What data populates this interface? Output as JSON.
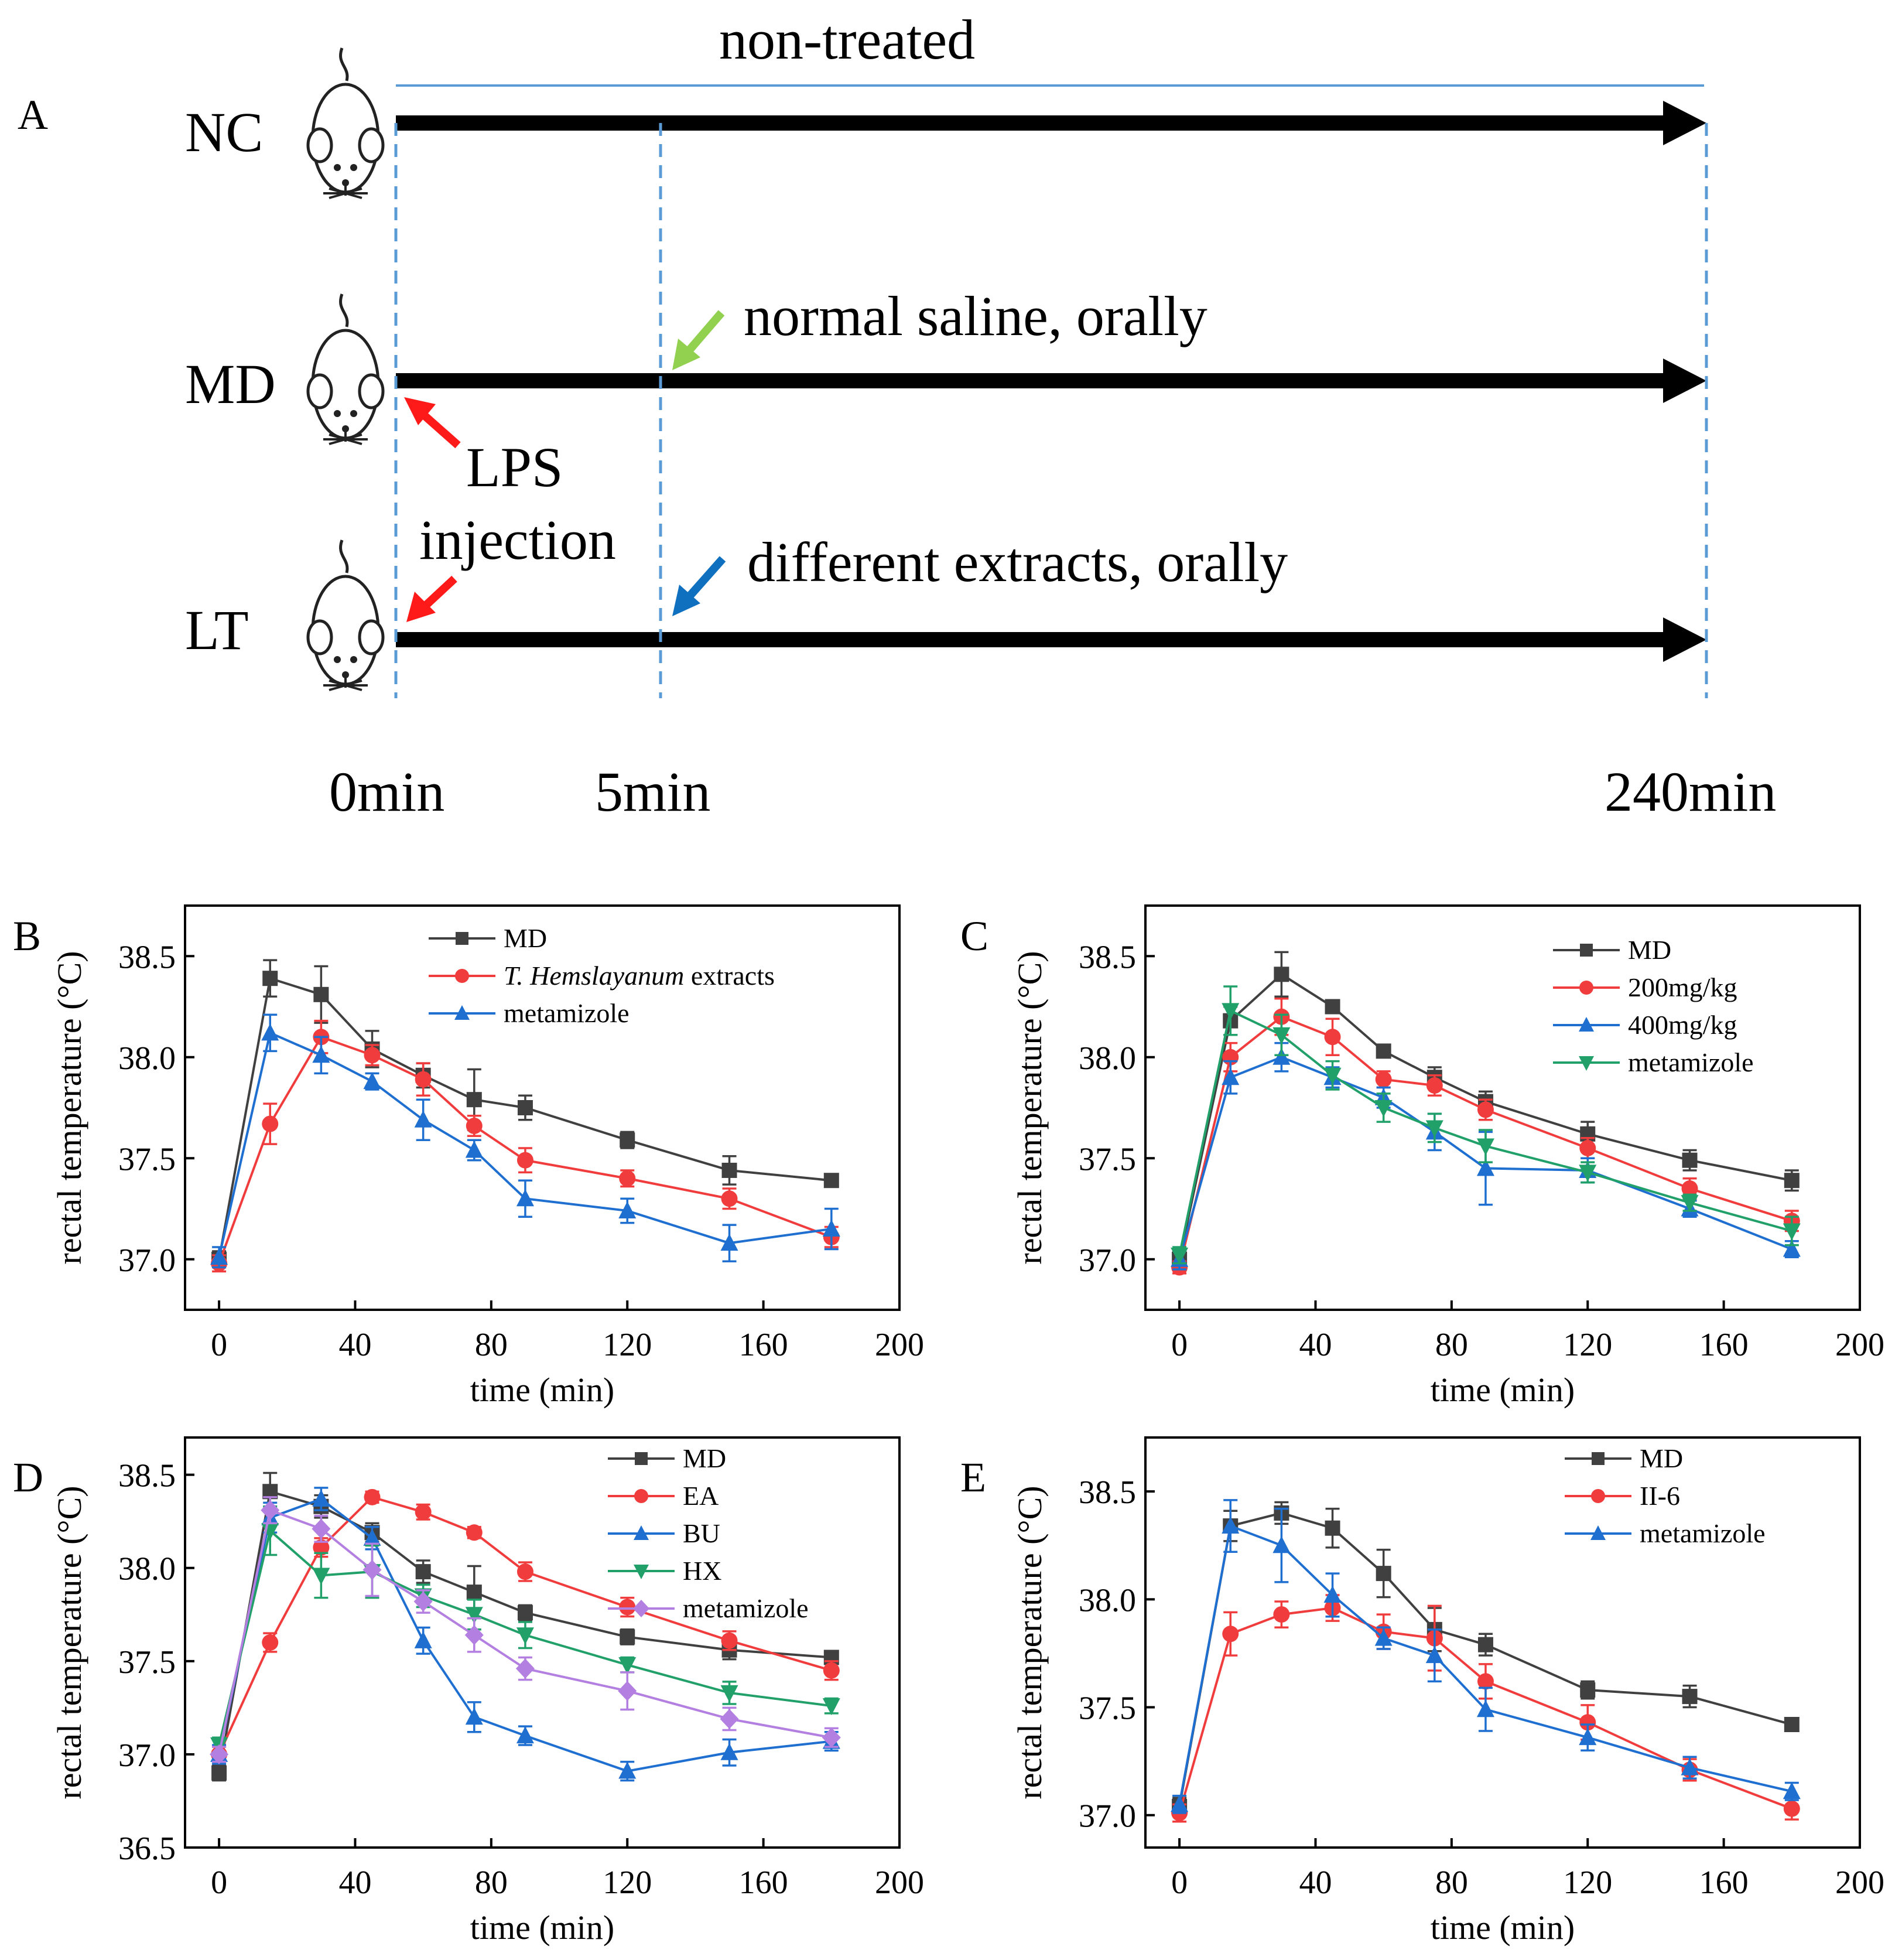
{
  "schematic": {
    "panel_label": "A",
    "groups": [
      "NC",
      "MD",
      "LT"
    ],
    "top_label": "non-treated",
    "md_label": "normal saline, orally",
    "lt_label": "different extracts, orally",
    "lps_label_1": "LPS",
    "lps_label_2": "injection",
    "times": [
      "0min",
      "5min",
      "240min"
    ],
    "colors": {
      "lps_arrow": "#ff1a1a",
      "saline_arrow": "#92d050",
      "extract_arrow": "#1070c0",
      "guide_line": "#5b9bd5"
    }
  },
  "chart_data": [
    {
      "panel": "B",
      "type": "line",
      "xlabel": "time (min)",
      "ylabel": "rectal temperature (°C)",
      "xlim": [
        -10,
        200
      ],
      "ylim": [
        36.75,
        38.75
      ],
      "xticks": [
        0,
        40,
        80,
        120,
        160,
        200
      ],
      "xtick_labels": [
        "0",
        "40",
        "80",
        "120",
        "160",
        "200"
      ],
      "yticks": [
        37.0,
        37.5,
        38.0,
        38.5
      ],
      "ytick_labels": [
        "37.0",
        "37.5",
        "38.0",
        "38.5"
      ],
      "legend_position": "top-right",
      "x": [
        0,
        15,
        30,
        45,
        60,
        75,
        90,
        120,
        150,
        180
      ],
      "series": [
        {
          "name": "MD",
          "color": "#404040",
          "marker": "square",
          "values": [
            37.0,
            38.39,
            38.31,
            38.04,
            37.91,
            37.79,
            37.75,
            37.59,
            37.44,
            37.39
          ],
          "errors": [
            0.04,
            0.09,
            0.14,
            0.09,
            0.06,
            0.15,
            0.06,
            0.04,
            0.07,
            0.03
          ]
        },
        {
          "name": "T. Hemslayanum extracts",
          "name_italic": "T. Hemslayanum",
          "name_rest": " extracts",
          "color": "#f03c3c",
          "marker": "circle",
          "values": [
            36.98,
            37.67,
            38.1,
            38.01,
            37.89,
            37.66,
            37.49,
            37.4,
            37.3,
            37.11
          ],
          "errors": [
            0.04,
            0.1,
            0.08,
            0.05,
            0.08,
            0.05,
            0.06,
            0.04,
            0.05,
            0.05
          ]
        },
        {
          "name": "metamizole",
          "color": "#1f6fd1",
          "marker": "triangle-up",
          "values": [
            37.01,
            38.12,
            38.01,
            37.88,
            37.69,
            37.54,
            37.3,
            37.24,
            37.08,
            37.15
          ],
          "errors": [
            0.05,
            0.09,
            0.09,
            0.04,
            0.1,
            0.05,
            0.09,
            0.06,
            0.09,
            0.1
          ]
        }
      ]
    },
    {
      "panel": "C",
      "type": "line",
      "xlabel": "time (min)",
      "ylabel": "rectal temperature (°C)",
      "xlim": [
        -10,
        200
      ],
      "ylim": [
        36.75,
        38.75
      ],
      "xticks": [
        0,
        40,
        80,
        120,
        160,
        200
      ],
      "xtick_labels": [
        "0",
        "40",
        "80",
        "120",
        "160",
        "200"
      ],
      "yticks": [
        37.0,
        37.5,
        38.0,
        38.5
      ],
      "ytick_labels": [
        "37.0",
        "37.5",
        "38.0",
        "38.5"
      ],
      "legend_position": "top-right",
      "x": [
        0,
        15,
        30,
        45,
        60,
        75,
        90,
        120,
        150,
        180
      ],
      "series": [
        {
          "name": "MD",
          "color": "#404040",
          "marker": "square",
          "values": [
            37.0,
            38.18,
            38.41,
            38.25,
            38.03,
            37.9,
            37.78,
            37.62,
            37.49,
            37.39
          ],
          "errors": [
            0.04,
            0.07,
            0.11,
            0.03,
            0.03,
            0.05,
            0.05,
            0.06,
            0.05,
            0.05
          ]
        },
        {
          "name": "200mg/kg",
          "color": "#f03c3c",
          "marker": "circle",
          "values": [
            36.96,
            38.0,
            38.2,
            38.1,
            37.89,
            37.86,
            37.74,
            37.55,
            37.35,
            37.19
          ],
          "errors": [
            0.03,
            0.07,
            0.09,
            0.09,
            0.04,
            0.05,
            0.05,
            0.05,
            0.05,
            0.05
          ]
        },
        {
          "name": "400mg/kg",
          "color": "#1f6fd1",
          "marker": "triangle-up",
          "values": [
            37.0,
            37.9,
            38.0,
            37.9,
            37.8,
            37.63,
            37.45,
            37.44,
            37.25,
            37.05
          ],
          "errors": [
            0.05,
            0.08,
            0.07,
            0.05,
            0.05,
            0.09,
            0.18,
            0.06,
            0.04,
            0.04
          ]
        },
        {
          "name": "metamizole",
          "color": "#21a06a",
          "marker": "triangle-down",
          "values": [
            37.02,
            38.23,
            38.11,
            37.91,
            37.75,
            37.65,
            37.56,
            37.43,
            37.28,
            37.14
          ],
          "errors": [
            0.04,
            0.12,
            0.1,
            0.07,
            0.07,
            0.07,
            0.08,
            0.05,
            0.04,
            0.07
          ]
        }
      ]
    },
    {
      "panel": "D",
      "type": "line",
      "xlabel": "time (min)",
      "ylabel": "rectal temperature (°C)",
      "xlim": [
        -10,
        200
      ],
      "ylim": [
        36.5,
        38.7
      ],
      "xticks": [
        0,
        40,
        80,
        120,
        160,
        200
      ],
      "xtick_labels": [
        "0",
        "40",
        "80",
        "120",
        "160",
        "200"
      ],
      "yticks": [
        36.5,
        37.0,
        37.5,
        38.0,
        38.5
      ],
      "ytick_labels": [
        "36.5",
        "37.0",
        "37.5",
        "38.0",
        "38.5"
      ],
      "legend_position": "top-right",
      "x": [
        0,
        15,
        30,
        45,
        60,
        75,
        90,
        120,
        150,
        180
      ],
      "series": [
        {
          "name": "MD",
          "color": "#404040",
          "marker": "square",
          "values": [
            36.9,
            38.41,
            38.33,
            38.19,
            37.98,
            37.87,
            37.76,
            37.63,
            37.56,
            37.52
          ],
          "errors": [
            0.04,
            0.1,
            0.06,
            0.05,
            0.06,
            0.14,
            0.04,
            0.04,
            0.05,
            0.03
          ]
        },
        {
          "name": "EA",
          "color": "#f03c3c",
          "marker": "circle",
          "values": [
            37.0,
            37.6,
            38.11,
            38.38,
            38.3,
            38.19,
            37.98,
            37.79,
            37.61,
            37.45
          ],
          "errors": [
            0.04,
            0.05,
            0.05,
            0.03,
            0.04,
            0.03,
            0.05,
            0.05,
            0.05,
            0.05
          ]
        },
        {
          "name": "BU",
          "color": "#1f6fd1",
          "marker": "triangle-up",
          "values": [
            37.0,
            38.27,
            38.37,
            38.16,
            37.61,
            37.2,
            37.1,
            36.91,
            37.01,
            37.07
          ],
          "errors": [
            0.05,
            0.08,
            0.06,
            0.06,
            0.07,
            0.08,
            0.05,
            0.05,
            0.07,
            0.05
          ]
        },
        {
          "name": "HX",
          "color": "#21a06a",
          "marker": "triangle-down",
          "values": [
            37.05,
            38.2,
            37.96,
            37.98,
            37.85,
            37.75,
            37.64,
            37.48,
            37.33,
            37.26
          ],
          "errors": [
            0.04,
            0.13,
            0.12,
            0.14,
            0.06,
            0.08,
            0.07,
            0.04,
            0.06,
            0.04
          ]
        },
        {
          "name": "metamizole",
          "color": "#b37fe0",
          "marker": "diamond",
          "values": [
            37.0,
            38.31,
            38.21,
            37.99,
            37.82,
            37.64,
            37.46,
            37.34,
            37.19,
            37.09
          ],
          "errors": [
            0.04,
            0.07,
            0.07,
            0.14,
            0.06,
            0.09,
            0.06,
            0.1,
            0.06,
            0.05
          ]
        }
      ]
    },
    {
      "panel": "E",
      "type": "line",
      "xlabel": "time (min)",
      "ylabel": "rectal temperature (°C)",
      "xlim": [
        -10,
        200
      ],
      "ylim": [
        36.85,
        38.75
      ],
      "xticks": [
        0,
        40,
        80,
        120,
        160,
        200
      ],
      "xtick_labels": [
        "0",
        "40",
        "80",
        "120",
        "160",
        "200"
      ],
      "yticks": [
        37.0,
        37.5,
        38.0,
        38.5
      ],
      "ytick_labels": [
        "37.0",
        "37.5",
        "38.0",
        "38.5"
      ],
      "legend_position": "top-right",
      "x": [
        0,
        15,
        30,
        45,
        60,
        75,
        90,
        120,
        150,
        180
      ],
      "series": [
        {
          "name": "MD",
          "color": "#404040",
          "marker": "square",
          "values": [
            37.04,
            38.34,
            38.4,
            38.33,
            38.12,
            37.86,
            37.79,
            37.58,
            37.55,
            37.42
          ],
          "errors": [
            0.04,
            0.07,
            0.05,
            0.09,
            0.11,
            0.1,
            0.05,
            0.04,
            0.05,
            0.03
          ]
        },
        {
          "name": "II-6",
          "color": "#f03c3c",
          "marker": "circle",
          "values": [
            37.01,
            37.84,
            37.93,
            37.96,
            37.85,
            37.82,
            37.62,
            37.43,
            37.21,
            37.03
          ],
          "errors": [
            0.04,
            0.1,
            0.06,
            0.06,
            0.08,
            0.15,
            0.08,
            0.08,
            0.05,
            0.05
          ]
        },
        {
          "name": "metamizole",
          "color": "#1f6fd1",
          "marker": "triangle-up",
          "values": [
            37.05,
            38.34,
            38.25,
            38.02,
            37.82,
            37.74,
            37.49,
            37.36,
            37.22,
            37.11
          ],
          "errors": [
            0.04,
            0.12,
            0.17,
            0.1,
            0.05,
            0.12,
            0.1,
            0.06,
            0.05,
            0.04
          ]
        }
      ]
    }
  ]
}
